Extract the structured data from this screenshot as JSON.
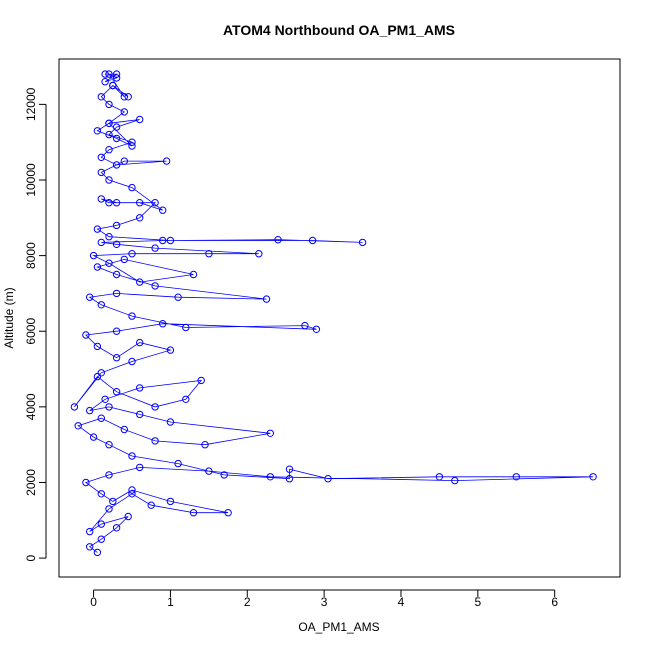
{
  "chart_data": {
    "type": "scatter",
    "title": "ATOM4 Northbound OA_PM1_AMS",
    "xlabel": "OA_PM1_AMS",
    "ylabel": "Altitude (m)",
    "xlim": [
      -0.45,
      6.85
    ],
    "ylim": [
      -500,
      13200
    ],
    "xticks": [
      0,
      1,
      2,
      3,
      4,
      5,
      6
    ],
    "xtick_labels": [
      "0",
      "1",
      "2",
      "3",
      "4",
      "5",
      "6"
    ],
    "yticks": [
      0,
      2000,
      4000,
      6000,
      8000,
      10000,
      12000
    ],
    "ytick_labels": [
      "0",
      "2000",
      "4000",
      "6000",
      "8000",
      "10000",
      "12000"
    ],
    "grid": false,
    "color": "#0000ff",
    "series": [
      {
        "x": [
          0.05,
          -0.05,
          0.1,
          0.3,
          0.45,
          0.1,
          -0.05,
          0.2,
          0.5,
          0.75,
          1.3,
          1.75,
          1.0,
          0.5,
          0.25,
          0.1,
          -0.1,
          0.2,
          0.6,
          1.5,
          2.3,
          4.7,
          6.5,
          5.5,
          4.5,
          3.05,
          2.55,
          2.55,
          1.7,
          1.1,
          0.5,
          0.2,
          0.0,
          -0.2,
          0.1,
          0.4,
          0.8,
          1.45,
          2.3,
          1.0,
          0.6,
          0.2,
          -0.05,
          0.15,
          0.6,
          1.4,
          1.2,
          0.8,
          0.3,
          0.05,
          -0.25,
          0.1,
          0.5,
          1.0,
          0.6,
          0.3,
          0.05,
          -0.1,
          0.3,
          0.9,
          2.9,
          2.75,
          1.2,
          0.5,
          0.1,
          -0.05,
          0.3,
          1.1,
          2.25,
          0.8,
          0.3,
          0.05,
          0.4,
          1.3,
          0.6,
          0.2,
          0.0,
          0.5,
          1.5,
          2.15,
          0.8,
          0.3,
          0.1,
          0.9,
          2.85,
          3.5,
          2.4,
          1.0,
          0.2,
          0.05,
          0.3,
          0.6,
          0.8,
          0.3,
          0.1,
          0.2,
          0.6,
          0.9,
          0.5,
          0.2,
          0.1,
          0.4,
          0.95,
          0.3,
          0.1,
          0.2,
          0.5,
          0.2,
          0.3,
          0.6,
          0.2,
          0.05,
          0.3,
          0.5,
          0.2,
          0.4,
          0.2,
          0.1,
          0.25,
          0.45,
          0.25,
          0.4,
          0.2,
          0.3,
          0.15,
          0.3,
          0.15
        ],
        "y": [
          150,
          300,
          500,
          800,
          1100,
          900,
          700,
          1300,
          1700,
          1400,
          1200,
          1200,
          1500,
          1800,
          1500,
          1700,
          2000,
          2200,
          2400,
          2300,
          2150,
          2050,
          2150,
          2150,
          2150,
          2100,
          2350,
          2100,
          2200,
          2500,
          2700,
          3000,
          3200,
          3500,
          3700,
          3400,
          3100,
          3000,
          3300,
          3600,
          3800,
          4000,
          3900,
          4200,
          4500,
          4700,
          4200,
          4000,
          4400,
          4800,
          4000,
          4900,
          5200,
          5500,
          5700,
          5300,
          5600,
          5900,
          6000,
          6200,
          6050,
          6150,
          6100,
          6400,
          6700,
          6900,
          7000,
          6900,
          6850,
          7200,
          7500,
          7700,
          7900,
          7500,
          7300,
          7800,
          8000,
          8050,
          8050,
          8050,
          8200,
          8300,
          8350,
          8400,
          8400,
          8350,
          8420,
          8400,
          8500,
          8700,
          8800,
          9000,
          9400,
          9400,
          9500,
          9400,
          9400,
          9200,
          9800,
          10000,
          10200,
          10500,
          10500,
          10400,
          10600,
          10800,
          11000,
          11200,
          11400,
          11600,
          11500,
          11300,
          11100,
          10900,
          11500,
          11800,
          12000,
          12200,
          12500,
          12200,
          12500,
          12200,
          12800,
          12700,
          12600,
          12800,
          12800
        ]
      }
    ]
  }
}
